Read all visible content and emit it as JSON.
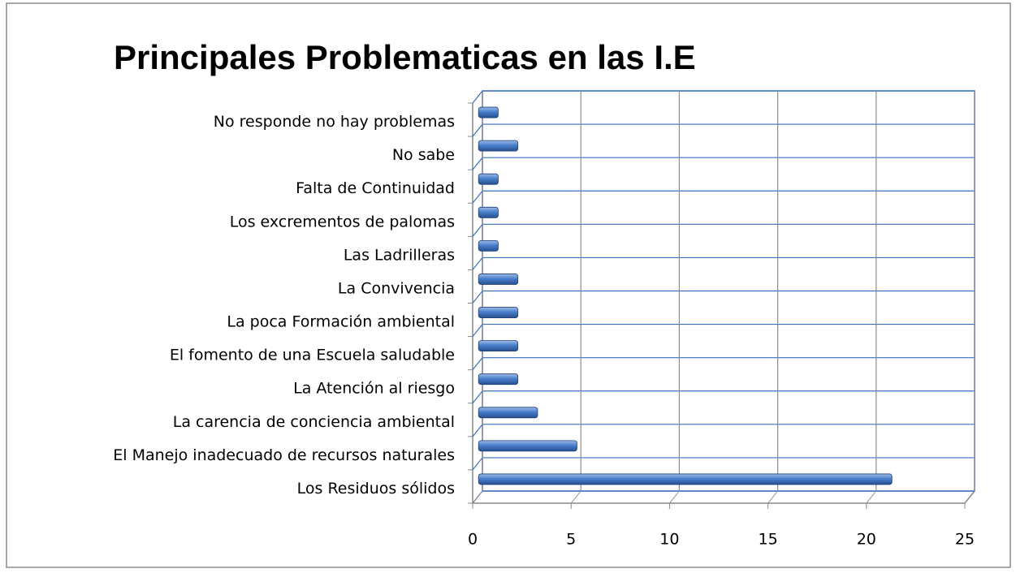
{
  "chart_data": {
    "type": "bar",
    "orientation": "horizontal",
    "title": "Principales Problematicas en las I.E",
    "categories": [
      "No responde no hay problemas",
      "No sabe",
      "Falta de Continuidad",
      "Los excrementos de palomas",
      "Las Ladrilleras",
      "La Convivencia",
      "La poca Formación ambiental",
      "El fomento de una Escuela saludable",
      "La Atención al riesgo",
      "La carencia de conciencia ambiental",
      "El Manejo inadecuado de recursos naturales",
      "Los Residuos sólidos"
    ],
    "values": [
      1,
      2,
      1,
      1,
      1,
      2,
      2,
      2,
      2,
      3,
      5,
      21
    ],
    "color": "#4a7fcc",
    "xlim": [
      0,
      25
    ],
    "xticks": [
      0,
      5,
      10,
      15,
      20,
      25
    ],
    "grid": true
  }
}
